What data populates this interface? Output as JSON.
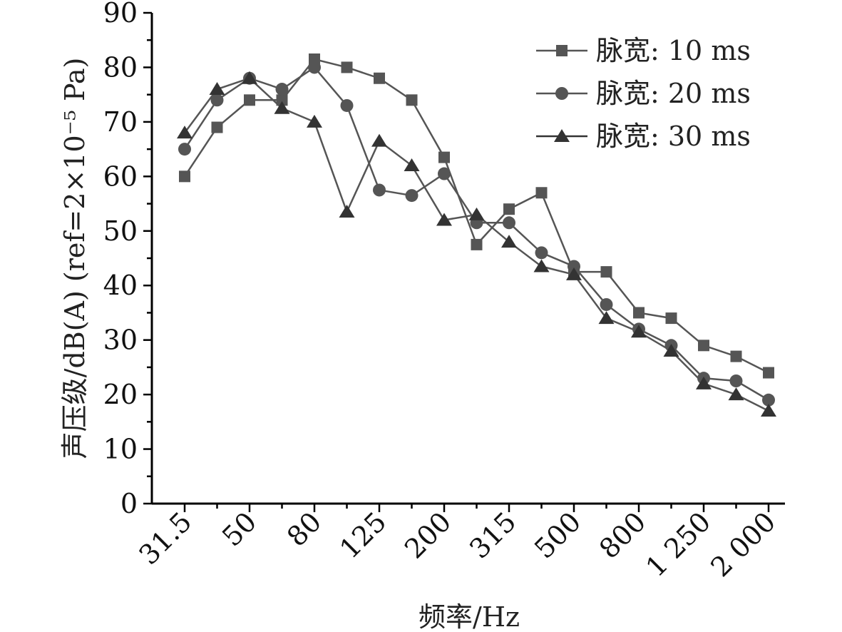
{
  "chart_data": {
    "type": "line",
    "title": "",
    "xlabel": "频率/Hz",
    "ylabel": "声压级/dB(A) (ref=2×10⁻⁵ Pa)",
    "ylim": [
      0,
      90
    ],
    "yticks": [
      0,
      10,
      20,
      30,
      40,
      50,
      60,
      70,
      80,
      90
    ],
    "x_tick_labels": [
      "31.5",
      "50",
      "80",
      "125",
      "200",
      "315",
      "500",
      "800",
      "1 250",
      "2 000"
    ],
    "x": [
      "31.5",
      "40",
      "50",
      "63",
      "80",
      "100",
      "125",
      "160",
      "200",
      "250",
      "315",
      "400",
      "500",
      "630",
      "800",
      "1000",
      "1250",
      "1600",
      "2000"
    ],
    "grid": false,
    "legend_position": "top-right",
    "series": [
      {
        "name": "脉宽: 10 ms",
        "marker": "square",
        "color": "#555555",
        "values": [
          60,
          69,
          74,
          74,
          81.5,
          80,
          78,
          74,
          63.5,
          47.5,
          54,
          57,
          42.5,
          42.5,
          35,
          34,
          29,
          27,
          24
        ]
      },
      {
        "name": "脉宽: 20 ms",
        "marker": "circle",
        "color": "#555555",
        "values": [
          65,
          74,
          78,
          76,
          80,
          73,
          57.5,
          56.5,
          60.5,
          51.5,
          51.5,
          46,
          43.5,
          36.5,
          32,
          29,
          23,
          22.5,
          19
        ]
      },
      {
        "name": "脉宽: 30 ms",
        "marker": "triangle",
        "color": "#333333",
        "values": [
          68,
          76,
          78,
          72.5,
          70,
          53.5,
          66.5,
          62,
          52,
          53,
          48,
          43.5,
          42,
          34,
          31.5,
          28,
          22,
          20,
          17
        ]
      }
    ]
  }
}
